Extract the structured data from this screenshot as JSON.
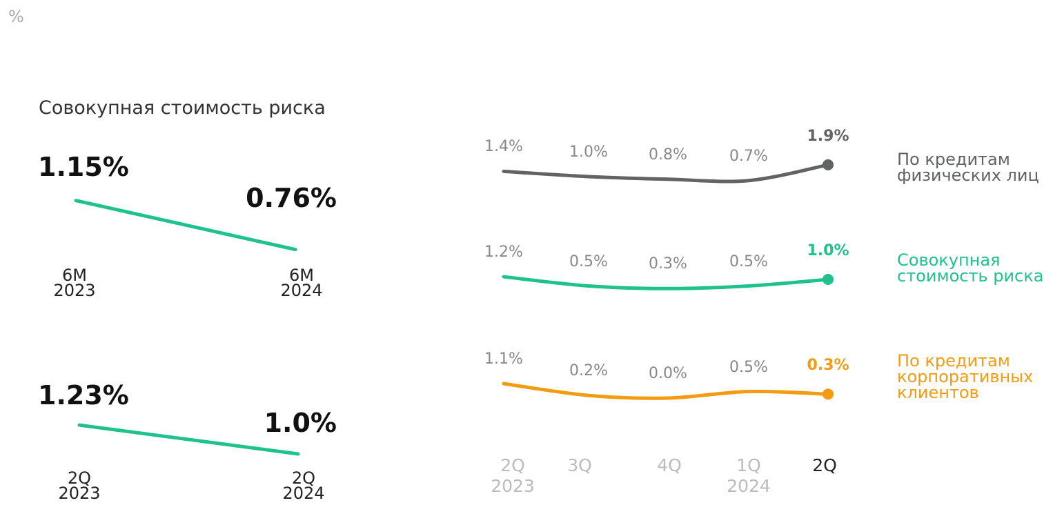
{
  "unit": "%",
  "chart_data": [
    {
      "type": "line",
      "title": "Совокупная стоимость риска",
      "categories": [
        "6M\n2023",
        "6M\n2024"
      ],
      "values": [
        1.15,
        0.76
      ],
      "value_labels": [
        "1.15%",
        "0.76%"
      ],
      "color": "#1fc28f"
    },
    {
      "type": "line",
      "categories": [
        "2Q\n2023",
        "2Q\n2024"
      ],
      "values": [
        1.23,
        1.0
      ],
      "value_labels": [
        "1.23%",
        "1.0%"
      ],
      "color": "#1fc28f"
    },
    {
      "type": "multiline",
      "categories": [
        "2Q\n2023",
        "3Q",
        "4Q",
        "1Q\n2024",
        "2Q"
      ],
      "series": [
        {
          "name": "По кредитам\nфизических лиц",
          "color": "#616463",
          "values": [
            1.4,
            1.0,
            0.8,
            0.7,
            1.9
          ],
          "value_labels": [
            "1.4%",
            "1.0%",
            "0.8%",
            "0.7%",
            "1.9%"
          ]
        },
        {
          "name": "Совокупная\nстоимость риска",
          "color": "#1fc28f",
          "values": [
            1.2,
            0.5,
            0.3,
            0.5,
            1.0
          ],
          "value_labels": [
            "1.2%",
            "0.5%",
            "0.3%",
            "0.5%",
            "1.0%"
          ]
        },
        {
          "name": "По кредитам\nкорпоративных\nклиентов",
          "color": "#f39c12",
          "values": [
            1.1,
            0.2,
            0.0,
            0.5,
            0.3
          ],
          "value_labels": [
            "1.1%",
            "0.2%",
            "0.0%",
            "0.5%",
            "0.3%"
          ]
        }
      ]
    }
  ]
}
